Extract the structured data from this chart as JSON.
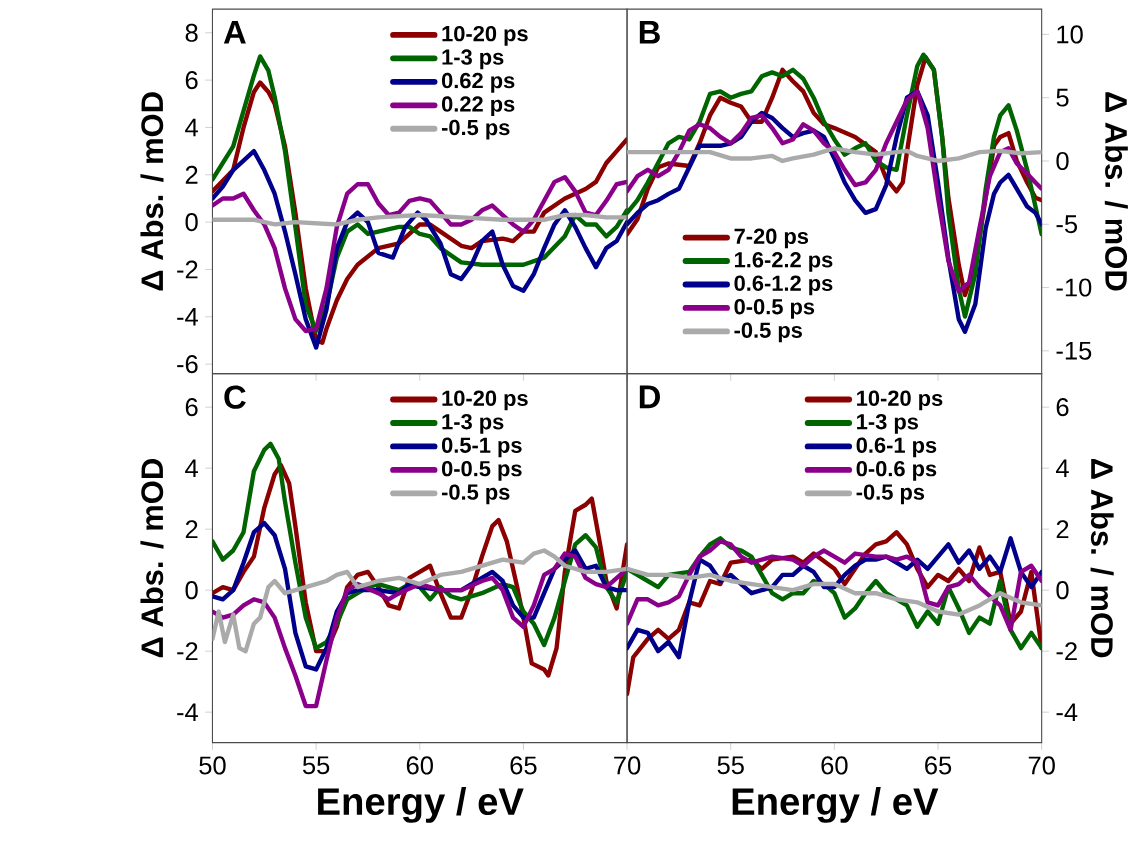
{
  "chart_data": [
    {
      "type": "line",
      "title": "A",
      "ylabel": "Δ Abs. / mOD",
      "xlim": [
        50,
        70
      ],
      "xticks": [
        50,
        55,
        60,
        65,
        70
      ],
      "ylim": [
        -6.4,
        9
      ],
      "yticks": [
        -6,
        -4,
        -2,
        0,
        2,
        4,
        6,
        8
      ],
      "tick_labels": "y",
      "legend": "top",
      "series": [
        {
          "name": "10-20 ps",
          "color": "#8b0000",
          "x": [
            50,
            51,
            51.5,
            52,
            52.3,
            52.7,
            53,
            53.5,
            54,
            54.5,
            55,
            55.3,
            55.5,
            56,
            56.5,
            57,
            58,
            59,
            60,
            60.5,
            61,
            62,
            62.5,
            63,
            64,
            64.5,
            65,
            65.5,
            66,
            67,
            68,
            68.5,
            69,
            69.5,
            70
          ],
          "values": [
            1.3,
            2.2,
            4.0,
            5.5,
            5.9,
            5.5,
            5.0,
            3.2,
            0.4,
            -2.8,
            -5.0,
            -5.1,
            -4.5,
            -3.3,
            -2.4,
            -1.8,
            -1.1,
            -0.9,
            -0.1,
            -0.1,
            -0.4,
            -1.0,
            -1.1,
            -0.8,
            -0.7,
            -0.8,
            -0.4,
            -0.4,
            0.4,
            1.0,
            1.4,
            1.7,
            2.5,
            3.0,
            3.5
          ]
        },
        {
          "name": "1-3 ps",
          "color": "#006400",
          "x": [
            50,
            51,
            52,
            52.3,
            52.7,
            53,
            53.5,
            54,
            54.5,
            55,
            55.5,
            56,
            56.5,
            57,
            57.5,
            58,
            59,
            59.5,
            60,
            60.5,
            61,
            62,
            63,
            64,
            65,
            66,
            67,
            67.5,
            68,
            68.5,
            69,
            69.5,
            70
          ],
          "values": [
            1.8,
            3.2,
            6.2,
            7.0,
            6.4,
            5.3,
            3.0,
            -0.2,
            -3.5,
            -4.6,
            -3.5,
            -1.5,
            -0.4,
            -0.1,
            -0.5,
            -0.4,
            -0.2,
            -0.2,
            -0.5,
            -0.6,
            -1.1,
            -1.7,
            -1.8,
            -1.8,
            -1.8,
            -1.5,
            -0.6,
            0.3,
            -0.1,
            -0.1,
            -0.6,
            -0.2,
            0.5
          ]
        },
        {
          "name": "0.62 ps",
          "color": "#00008b",
          "x": [
            50,
            50.5,
            51,
            51.5,
            52,
            52.5,
            53,
            53.5,
            54,
            54.5,
            55,
            55.5,
            56,
            56.5,
            57,
            57.5,
            58,
            58.7,
            59.3,
            59.9,
            60.3,
            61,
            61.5,
            62,
            62.5,
            63,
            63.5,
            64,
            64.5,
            65,
            65.5,
            66,
            66.5,
            67,
            67.5,
            68,
            68.5,
            69,
            69.5,
            70
          ],
          "values": [
            1.0,
            1.5,
            2.2,
            2.6,
            3.0,
            2.2,
            1.2,
            -0.4,
            -2.2,
            -4.1,
            -5.3,
            -3.7,
            -1.1,
            0.0,
            0.4,
            0.0,
            -1.3,
            -1.5,
            -0.2,
            0.4,
            0.1,
            -0.9,
            -2.2,
            -2.4,
            -1.8,
            -0.8,
            -0.4,
            -1.8,
            -2.7,
            -2.9,
            -2.2,
            -1.1,
            -0.1,
            0.5,
            -0.2,
            -1.1,
            -1.9,
            -1.1,
            -0.8,
            0.0
          ]
        },
        {
          "name": "0.22 ps",
          "color": "#8b008b",
          "x": [
            50,
            50.5,
            51,
            51.5,
            52,
            52.5,
            53,
            53.5,
            54,
            54.5,
            55,
            55.5,
            56,
            56.5,
            57,
            57.5,
            58,
            58.5,
            59,
            59.5,
            60,
            60.5,
            61,
            61.5,
            62,
            62.5,
            63,
            63.5,
            64,
            64.5,
            65,
            65.5,
            66,
            66.5,
            67,
            67.5,
            68,
            68.5,
            69,
            69.5,
            70
          ],
          "values": [
            0.7,
            1.0,
            1.0,
            1.2,
            0.5,
            -0.1,
            -1.1,
            -2.8,
            -4.1,
            -4.6,
            -4.5,
            -2.8,
            -0.2,
            1.2,
            1.6,
            1.6,
            0.8,
            0.3,
            0.4,
            0.9,
            1.0,
            0.9,
            0.4,
            -0.1,
            -0.1,
            0.1,
            0.5,
            0.7,
            0.3,
            -0.1,
            -0.4,
            0.1,
            0.9,
            1.7,
            1.9,
            1.3,
            0.4,
            0.3,
            0.9,
            1.6,
            1.7
          ]
        },
        {
          "name": "-0.5 ps",
          "color": "#aaaaaa",
          "x": [
            50,
            52,
            53,
            54,
            56,
            57,
            58,
            60,
            62,
            64,
            65,
            66,
            67,
            68,
            69,
            70
          ],
          "values": [
            0.1,
            0.1,
            -0.1,
            0.0,
            -0.1,
            0.1,
            0.2,
            0.3,
            0.2,
            0.1,
            0.1,
            0.1,
            0.3,
            0.3,
            0.2,
            0.2
          ]
        }
      ]
    },
    {
      "type": "line",
      "title": "B",
      "y2label": "Δ Abs. / mOD",
      "xlim": [
        50,
        70
      ],
      "xticks": [
        50,
        55,
        60,
        65,
        70
      ],
      "y2lim": [
        -16.8,
        12
      ],
      "y2ticks": [
        -15,
        -10,
        -5,
        0,
        5,
        10
      ],
      "tick_labels": "y",
      "legend": "bottom left",
      "series": [
        {
          "name": "7-20 ps",
          "color": "#8b0000",
          "axis": "y2",
          "x": [
            50,
            50.5,
            51,
            51.5,
            52,
            53,
            53.5,
            54,
            54.5,
            55,
            55.5,
            56,
            56.5,
            57,
            57.5,
            58,
            58.5,
            59,
            59.5,
            60,
            61,
            62,
            62.5,
            63,
            63.3,
            63.5,
            64,
            64.4,
            64.8,
            65.2,
            65.5,
            66,
            66.3,
            66.8,
            67.3,
            67.7,
            68,
            68.4,
            68.8,
            69.3,
            69.7,
            70
          ],
          "values": [
            -5.8,
            -4.6,
            -2.2,
            -0.5,
            -0.2,
            -0.4,
            1.4,
            3.6,
            5.0,
            4.6,
            4.3,
            3.1,
            3.1,
            5.0,
            7.2,
            6.3,
            5.5,
            3.8,
            2.9,
            2.6,
            1.9,
            0.7,
            -1.4,
            -2.4,
            -1.7,
            0.7,
            6.0,
            8.2,
            7.2,
            1.9,
            -2.9,
            -8.2,
            -10.6,
            -8.2,
            -2.9,
            1.2,
            1.9,
            2.2,
            0.0,
            -1.7,
            -2.9,
            -3.1
          ]
        },
        {
          "name": "1.6-2.2 ps",
          "color": "#006400",
          "axis": "y2",
          "x": [
            50,
            50.5,
            51,
            52,
            52.5,
            53,
            53.5,
            54,
            54.5,
            55,
            55.5,
            56,
            56.5,
            57,
            57.5,
            58,
            58.5,
            59,
            59.5,
            60,
            60.5,
            61,
            61.5,
            62,
            62.5,
            63,
            63.5,
            64,
            64.3,
            64.8,
            65.2,
            65.5,
            66,
            66.3,
            66.8,
            67.3,
            67.7,
            68,
            68.4,
            68.8,
            69.3,
            69.7,
            70
          ],
          "values": [
            -4.1,
            -3.1,
            -1.7,
            1.4,
            1.9,
            1.7,
            3.1,
            5.3,
            5.5,
            5.0,
            5.3,
            5.5,
            6.7,
            7.0,
            6.7,
            7.2,
            6.5,
            5.0,
            3.1,
            1.7,
            0.5,
            1.0,
            1.4,
            0.0,
            -0.5,
            -0.7,
            3.6,
            7.5,
            8.4,
            7.2,
            1.9,
            -4.1,
            -10.1,
            -12.3,
            -8.9,
            -2.2,
            1.9,
            3.6,
            4.4,
            2.4,
            -0.7,
            -3.6,
            -5.8
          ]
        },
        {
          "name": "0.6-1.2 ps",
          "color": "#00008b",
          "axis": "y2",
          "x": [
            50,
            50.5,
            51,
            51.5,
            52,
            52.5,
            53,
            53.5,
            54,
            54.5,
            55,
            55.5,
            56,
            56.5,
            57,
            57.5,
            58,
            58.5,
            59,
            59.5,
            60,
            60.5,
            61,
            61.5,
            62,
            62.5,
            63,
            63.5,
            64,
            64.5,
            65,
            65.5,
            66,
            66.3,
            66.8,
            67.3,
            67.7,
            68,
            68.4,
            68.8,
            69.3,
            69.7,
            70
          ],
          "values": [
            -5.0,
            -4.1,
            -3.4,
            -3.1,
            -2.6,
            -2.2,
            -0.5,
            1.2,
            1.2,
            1.2,
            1.4,
            1.9,
            3.1,
            3.8,
            3.4,
            2.6,
            1.9,
            2.2,
            2.4,
            1.9,
            0.2,
            -1.7,
            -3.1,
            -4.1,
            -3.8,
            -1.9,
            1.9,
            5.0,
            5.5,
            3.6,
            -1.7,
            -7.7,
            -12.5,
            -13.5,
            -11.3,
            -5.3,
            -2.6,
            -1.7,
            -1.1,
            -2.2,
            -3.6,
            -4.1,
            -5.0
          ]
        },
        {
          "name": "0-0.5 ps",
          "color": "#8b008b",
          "axis": "y2",
          "x": [
            50,
            50.5,
            51,
            51.5,
            52,
            52.5,
            53,
            53.5,
            54,
            54.5,
            55,
            55.5,
            56,
            56.5,
            57,
            57.5,
            58,
            58.5,
            59,
            59.5,
            60,
            60.5,
            61,
            61.5,
            62,
            62.5,
            63,
            63.5,
            64,
            64.5,
            65,
            65.5,
            66,
            66.5,
            67,
            67.5,
            68,
            68.4,
            68.8,
            69.3,
            69.7,
            70
          ],
          "values": [
            -2.4,
            -1.2,
            -0.7,
            -1.2,
            -0.7,
            0.7,
            2.4,
            2.9,
            2.6,
            1.9,
            1.4,
            2.2,
            3.4,
            3.6,
            2.6,
            1.4,
            1.7,
            2.9,
            2.4,
            1.4,
            0.7,
            -0.7,
            -1.9,
            -1.7,
            -0.7,
            1.4,
            3.1,
            4.8,
            5.5,
            2.6,
            -2.9,
            -7.9,
            -10.3,
            -9.6,
            -5.3,
            -1.2,
            0.7,
            1.0,
            -0.2,
            -1.0,
            -1.7,
            -2.2
          ]
        },
        {
          "name": "-0.5 ps",
          "color": "#aaaaaa",
          "axis": "y2",
          "x": [
            50,
            52,
            53,
            54,
            55,
            56,
            57,
            57.5,
            58,
            59,
            60,
            61,
            62,
            63,
            63.5,
            64,
            65,
            66,
            67,
            68,
            69,
            70
          ],
          "values": [
            0.7,
            0.7,
            0.7,
            0.7,
            0.2,
            0.2,
            0.4,
            0.0,
            0.2,
            0.5,
            1.0,
            0.7,
            0.5,
            0.7,
            0.8,
            0.4,
            0.0,
            0.2,
            0.7,
            0.8,
            0.6,
            0.7
          ]
        }
      ]
    },
    {
      "type": "line",
      "title": "C",
      "ylabel": "Δ Abs. / mOD",
      "xlabel": "Energy / eV",
      "xlim": [
        50,
        70
      ],
      "xticks": [
        50,
        55,
        60,
        65,
        70
      ],
      "ylim": [
        -5,
        7.1
      ],
      "yticks": [
        -4,
        -2,
        0,
        2,
        4,
        6
      ],
      "legend": "top",
      "series": [
        {
          "name": "10-20 ps",
          "color": "#8b0000",
          "x": [
            50,
            50.5,
            51,
            51.5,
            52,
            52.5,
            53,
            53.3,
            53.7,
            54,
            54.5,
            55,
            55.5,
            56,
            56.5,
            57,
            57.5,
            58,
            58.5,
            59,
            59.5,
            60,
            60.5,
            61,
            61.5,
            62,
            62.5,
            63,
            63.5,
            63.8,
            64.2,
            64.7,
            65,
            65.4,
            66,
            66.2,
            66.6,
            67,
            67.5,
            68,
            68.3,
            68.7,
            69,
            69.5,
            70
          ],
          "values": [
            -0.1,
            0.1,
            0.0,
            0.6,
            1.1,
            2.7,
            3.8,
            4.1,
            3.5,
            2.1,
            -0.4,
            -2.0,
            -2.0,
            -1.2,
            0.1,
            0.5,
            0.6,
            0.1,
            -0.5,
            -0.6,
            0.4,
            0.6,
            0.8,
            -0.1,
            -0.9,
            -0.9,
            0.0,
            1.1,
            2.1,
            2.3,
            1.6,
            0.1,
            -0.9,
            -2.4,
            -2.6,
            -2.8,
            -1.9,
            0.6,
            2.6,
            2.8,
            3.0,
            1.5,
            0.3,
            -0.6,
            1.5
          ]
        },
        {
          "name": "1-3 ps",
          "color": "#006400",
          "x": [
            50,
            50.5,
            51,
            51.5,
            52,
            52.5,
            52.8,
            53.2,
            53.5,
            54,
            54.5,
            55,
            55.5,
            56,
            56.5,
            57,
            57.5,
            58,
            58.5,
            59,
            59.5,
            60,
            60.5,
            61,
            61.5,
            62,
            63,
            64,
            64.5,
            65,
            65.5,
            66,
            66.5,
            67,
            67.5,
            68,
            68.5,
            69,
            69.5,
            70
          ],
          "values": [
            1.6,
            1.0,
            1.3,
            1.9,
            3.9,
            4.6,
            4.8,
            4.3,
            2.9,
            0.9,
            -0.9,
            -1.9,
            -1.7,
            -1.1,
            -0.3,
            -0.1,
            0.1,
            0.2,
            0.1,
            0.0,
            0.2,
            0.1,
            -0.3,
            0.1,
            -0.2,
            -0.3,
            -0.1,
            0.2,
            0.1,
            -0.7,
            -1.1,
            -1.8,
            -0.9,
            0.3,
            1.5,
            1.8,
            1.4,
            0.1,
            -0.4,
            0.6
          ]
        },
        {
          "name": "0.5-1 ps",
          "color": "#00008b",
          "x": [
            50,
            50.5,
            51,
            51.5,
            52,
            52.5,
            53,
            53.5,
            54,
            54.5,
            55,
            55.5,
            56,
            56.5,
            57,
            58,
            59,
            59.5,
            60,
            61,
            62,
            63,
            63.5,
            64,
            64.5,
            65,
            65.5,
            66,
            66.5,
            67,
            67.5,
            68,
            68.5,
            69,
            69.5,
            70
          ],
          "values": [
            -0.2,
            -0.3,
            0.0,
            0.9,
            1.9,
            2.2,
            1.8,
            0.7,
            -1.4,
            -2.5,
            -2.6,
            -1.9,
            -0.7,
            -0.1,
            0.0,
            0.0,
            -0.1,
            0.2,
            0.1,
            0.0,
            0.0,
            0.4,
            0.6,
            0.3,
            -0.5,
            -0.9,
            -0.9,
            -0.1,
            0.7,
            1.0,
            1.3,
            0.7,
            0.8,
            0.1,
            0.0,
            0.0
          ]
        },
        {
          "name": "0-0.5 ps",
          "color": "#8b008b",
          "x": [
            50,
            50.5,
            51,
            51.5,
            52,
            52.5,
            53,
            53.5,
            54,
            54.5,
            55,
            55.5,
            56,
            56.5,
            57,
            58,
            58.5,
            59,
            60,
            60.5,
            61,
            62,
            63,
            63.5,
            64,
            64.5,
            65,
            65.5,
            66,
            66.5,
            67,
            67.5,
            68,
            68.5,
            69,
            70
          ],
          "values": [
            -0.7,
            -0.9,
            -0.8,
            -0.5,
            -0.3,
            -0.4,
            -0.9,
            -1.9,
            -2.8,
            -3.8,
            -3.8,
            -2.3,
            -0.9,
            0.0,
            0.2,
            -0.1,
            -0.3,
            -0.1,
            0.2,
            0.1,
            0.0,
            0.0,
            0.3,
            0.4,
            0.0,
            -0.9,
            -1.2,
            -0.5,
            0.5,
            0.7,
            1.2,
            1.1,
            0.4,
            0.2,
            0.1,
            0.7
          ]
        },
        {
          "name": "-0.5 ps",
          "color": "#aaaaaa",
          "x": [
            50,
            50.3,
            50.6,
            51,
            51.3,
            51.6,
            52,
            52.3,
            52.7,
            53,
            53.5,
            54,
            55,
            55.5,
            56,
            56.5,
            57,
            58,
            59,
            60,
            61,
            62,
            63,
            64,
            65,
            65.5,
            66,
            66.5,
            67,
            68,
            69,
            70
          ],
          "values": [
            -1.6,
            -0.7,
            -1.7,
            -0.8,
            -1.9,
            -2.0,
            -1.1,
            -0.9,
            0.1,
            0.3,
            -0.1,
            0.0,
            0.2,
            0.3,
            0.5,
            0.6,
            0.1,
            0.3,
            0.4,
            0.2,
            0.5,
            0.6,
            0.8,
            1.0,
            0.9,
            1.2,
            1.3,
            1.1,
            0.8,
            0.6,
            0.6,
            0.7
          ]
        }
      ]
    },
    {
      "type": "line",
      "title": "D",
      "y2label": "Δ Abs. / mOD",
      "xlabel": "Energy / eV",
      "xlim": [
        50,
        70
      ],
      "xticks": [
        55,
        60,
        65,
        70
      ],
      "y2lim": [
        -5,
        7.1
      ],
      "y2ticks": [
        -4,
        -2,
        0,
        2,
        4,
        6
      ],
      "legend": "top",
      "series": [
        {
          "name": "10-20 ps",
          "color": "#8b0000",
          "axis": "y2",
          "x": [
            50,
            50.3,
            51,
            51.5,
            52,
            52.5,
            53,
            53.5,
            54,
            54.5,
            55,
            56,
            56.5,
            57,
            58,
            58.5,
            59,
            60,
            60.5,
            61,
            61.5,
            62,
            62.5,
            63,
            63.5,
            64,
            64.5,
            65,
            65.5,
            66,
            66.5,
            67,
            67.5,
            68,
            68.5,
            69,
            69.5,
            70
          ],
          "values": [
            -3.4,
            -2.2,
            -1.6,
            -1.3,
            -1.6,
            -1.3,
            -0.4,
            -0.5,
            0.3,
            0.2,
            0.9,
            1.0,
            0.7,
            1.0,
            1.1,
            0.9,
            1.2,
            0.7,
            0.2,
            0.7,
            1.2,
            1.5,
            1.6,
            1.9,
            1.5,
            0.7,
            0.1,
            0.5,
            0.3,
            0.7,
            0.3,
            1.4,
            0.5,
            0.6,
            -1.1,
            -0.7,
            0.6,
            -1.9
          ]
        },
        {
          "name": "1-3 ps",
          "color": "#006400",
          "axis": "y2",
          "x": [
            50,
            51,
            51.5,
            52,
            53,
            53.5,
            54,
            54.5,
            55,
            55.5,
            56,
            57,
            57.5,
            58,
            58.5,
            59,
            59.5,
            60,
            60.5,
            61,
            61.5,
            62,
            62.5,
            63,
            63.5,
            64,
            64.5,
            65,
            65.5,
            66,
            66.5,
            67,
            67.5,
            68,
            68.5,
            69,
            69.5,
            70
          ],
          "values": [
            0.7,
            0.3,
            0.1,
            0.5,
            0.6,
            1.1,
            1.5,
            1.7,
            1.4,
            1.3,
            1.1,
            -0.1,
            -0.3,
            -0.1,
            -0.1,
            0.3,
            0.2,
            -0.1,
            -0.9,
            -0.6,
            -0.1,
            0.3,
            -0.1,
            -0.3,
            -0.5,
            -1.2,
            -0.7,
            -1.1,
            0.1,
            -0.6,
            -1.4,
            -0.9,
            -1.1,
            0.3,
            -1.3,
            -1.9,
            -1.4,
            -1.9
          ]
        },
        {
          "name": "0.6-1 ps",
          "color": "#00008b",
          "axis": "y2",
          "x": [
            50,
            50.5,
            51,
            51.5,
            52,
            52.5,
            53,
            53.5,
            54,
            54.5,
            55,
            55.5,
            56,
            57,
            57.5,
            58,
            58.5,
            59,
            59.5,
            60,
            60.5,
            61,
            61.5,
            62,
            62.5,
            63,
            63.5,
            64,
            64.5,
            65,
            65.5,
            66,
            66.5,
            67,
            67.5,
            68,
            68.5,
            69,
            69.5,
            70
          ],
          "values": [
            -1.9,
            -1.3,
            -1.4,
            -2.0,
            -1.7,
            -2.2,
            -0.4,
            1.0,
            0.8,
            0.3,
            0.5,
            0.2,
            -0.1,
            0.1,
            0.5,
            0.5,
            0.8,
            0.6,
            0.1,
            0.1,
            0.5,
            0.8,
            1.0,
            1.0,
            1.1,
            0.9,
            0.7,
            1.0,
            0.7,
            1.1,
            1.5,
            0.9,
            1.3,
            0.7,
            1.1,
            0.6,
            1.7,
            0.6,
            0.1,
            0.6
          ]
        },
        {
          "name": "0-0.6 ps",
          "color": "#8b008b",
          "axis": "y2",
          "x": [
            50,
            50.5,
            51,
            51.5,
            52,
            52.5,
            53,
            53.5,
            54,
            54.5,
            55,
            55.5,
            56,
            57,
            58,
            58.5,
            59,
            59.5,
            60,
            60.5,
            61,
            62,
            62.5,
            63,
            63.5,
            64,
            64.5,
            65,
            65.5,
            66,
            66.5,
            67,
            68,
            68.5,
            69,
            69.5,
            70
          ],
          "values": [
            -1.1,
            -0.3,
            -0.3,
            -0.5,
            -0.4,
            -0.2,
            0.5,
            1.1,
            1.3,
            1.6,
            1.5,
            1.1,
            0.9,
            1.1,
            1.0,
            0.8,
            1.1,
            1.3,
            1.1,
            0.9,
            1.2,
            1.1,
            1.1,
            1.0,
            1.1,
            0.9,
            -0.4,
            -0.5,
            0.1,
            0.2,
            0.5,
            0.1,
            -0.5,
            -1.3,
            0.6,
            0.8,
            0.3
          ]
        },
        {
          "name": "-0.5 ps",
          "color": "#aaaaaa",
          "axis": "y2",
          "x": [
            50,
            51,
            52,
            53,
            54,
            55,
            56,
            57,
            58,
            59,
            60,
            61,
            62,
            63,
            64,
            65,
            66,
            67,
            68,
            69,
            70
          ],
          "values": [
            0.7,
            0.5,
            0.5,
            0.4,
            0.5,
            0.3,
            0.2,
            0.1,
            0.0,
            0.2,
            0.2,
            -0.1,
            -0.1,
            -0.3,
            -0.4,
            -0.7,
            -0.8,
            -0.5,
            -0.1,
            -0.4,
            -0.5
          ]
        }
      ]
    }
  ]
}
